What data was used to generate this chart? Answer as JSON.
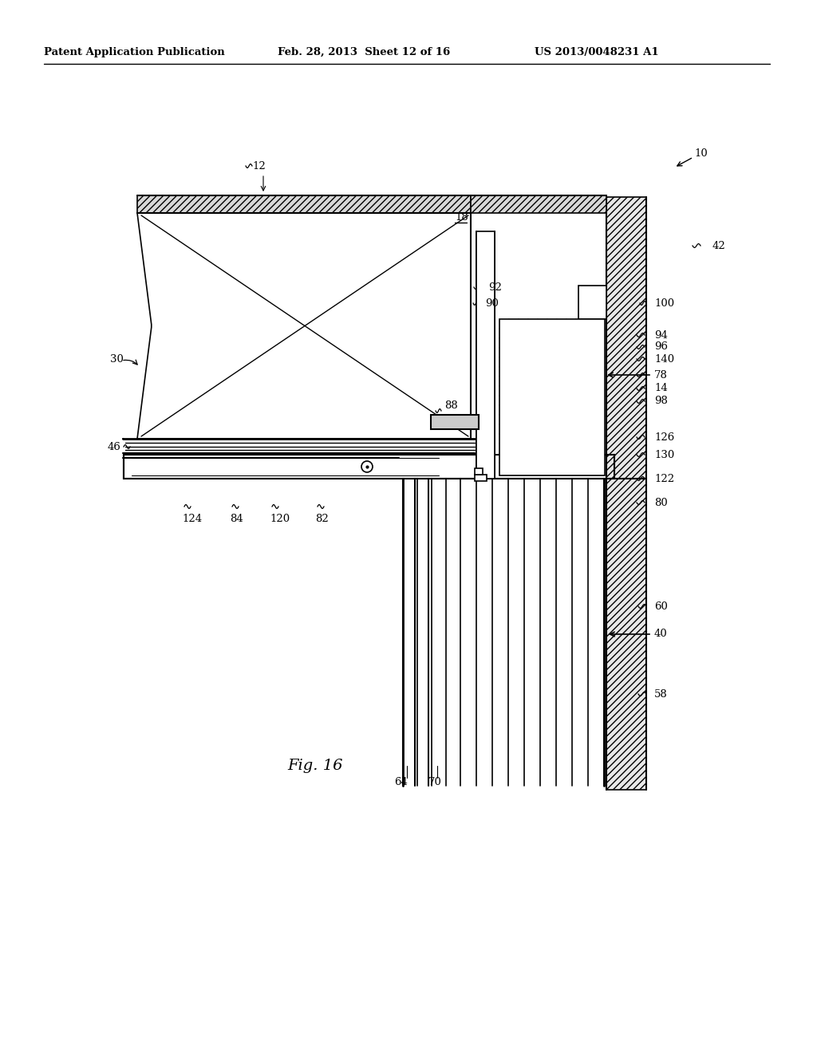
{
  "title_left": "Patent Application Publication",
  "title_center": "Feb. 28, 2013  Sheet 12 of 16",
  "title_right": "US 2013/0048231 A1",
  "fig_label": "Fig. 16",
  "bg_color": "#ffffff"
}
